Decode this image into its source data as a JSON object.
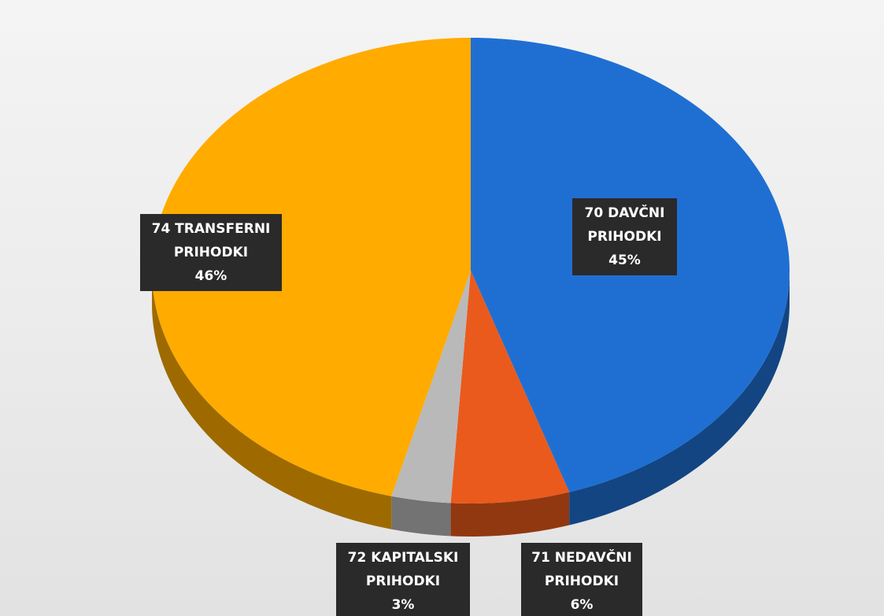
{
  "chart_data": {
    "type": "pie",
    "categories": [
      "70 DAVČNI PRIHODKI",
      "71 NEDAVČNI PRIHODKI",
      "72 KAPITALSKI PRIHODKI",
      "74 TRANSFERNI PRIHODKI"
    ],
    "values": [
      45,
      6,
      3,
      46
    ],
    "value_labels": [
      "45%",
      "6%",
      "3%",
      "46%"
    ],
    "colors": [
      "#1f6fd3",
      "#ea5a1c",
      "#b9b9b9",
      "#ffab00"
    ]
  }
}
